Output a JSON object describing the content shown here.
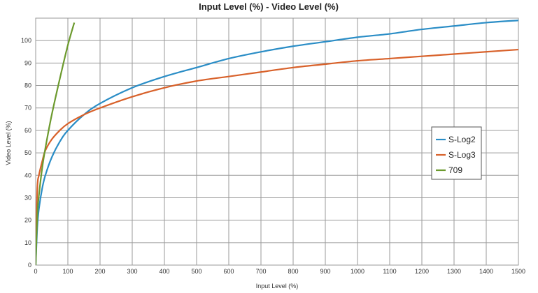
{
  "chart_data": {
    "type": "line",
    "title": "Input Level (%) - Video Level (%)",
    "xlabel": "Input Level (%)",
    "ylabel": "Video Level (%)",
    "xlim": [
      0,
      1500
    ],
    "ylim": [
      0,
      110
    ],
    "x_ticks": [
      0,
      100,
      200,
      300,
      400,
      500,
      600,
      700,
      800,
      900,
      1000,
      1100,
      1200,
      1300,
      1400,
      1500
    ],
    "y_ticks": [
      0,
      10,
      20,
      30,
      40,
      50,
      60,
      70,
      80,
      90,
      100
    ],
    "grid": true,
    "legend_position": "right",
    "series": [
      {
        "name": "S-Log2",
        "color": "#2a8dc6",
        "x": [
          0,
          5,
          10,
          20,
          30,
          50,
          75,
          100,
          150,
          200,
          300,
          400,
          500,
          600,
          700,
          800,
          900,
          1000,
          1100,
          1200,
          1300,
          1400,
          1500
        ],
        "y": [
          0,
          17,
          25,
          34,
          40,
          48,
          55,
          60,
          67,
          72,
          79,
          84,
          88,
          92,
          95,
          97.5,
          99.5,
          101.5,
          103,
          105,
          106.5,
          108,
          109
        ]
      },
      {
        "name": "S-Log3",
        "color": "#d8612a",
        "x": [
          0,
          5,
          10,
          20,
          30,
          50,
          75,
          100,
          150,
          200,
          300,
          400,
          500,
          600,
          700,
          800,
          900,
          1000,
          1100,
          1200,
          1300,
          1400,
          1500
        ],
        "y": [
          5,
          34,
          40,
          46,
          51,
          56,
          60,
          63,
          67,
          70,
          75,
          79,
          82,
          84,
          86,
          88,
          89.5,
          91,
          92,
          93,
          94,
          95,
          96
        ]
      },
      {
        "name": "709",
        "color": "#6c9a2e",
        "x": [
          0,
          5,
          10,
          20,
          30,
          50,
          75,
          100,
          120
        ],
        "y": [
          0,
          22,
          31,
          43,
          52,
          67,
          83,
          98,
          108
        ]
      }
    ]
  }
}
